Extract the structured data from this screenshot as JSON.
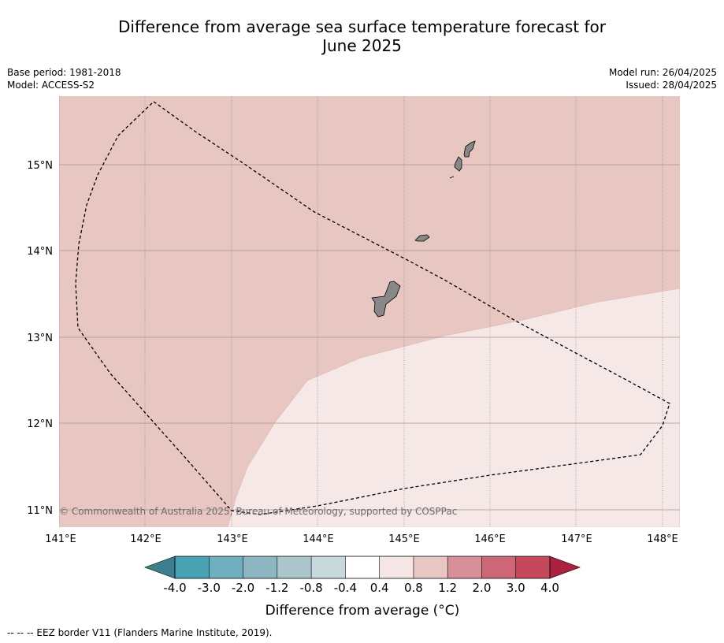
{
  "title_line1": "Difference from average sea surface temperature forecast for",
  "title_line2": "June 2025",
  "meta_left": [
    "Base period: 1981-2018",
    "Model: ACCESS-S2"
  ],
  "meta_right": [
    "Model run: 26/04/2025",
    "Issued: 28/04/2025"
  ],
  "copyright": "© Commonwealth of Australia 2025, Bureau of Meteorology, supported by COSPPac",
  "lon_ticks": [
    "141°E",
    "142°E",
    "143°E",
    "144°E",
    "145°E",
    "146°E",
    "147°E",
    "148°E"
  ],
  "lat_ticks": [
    "15°N",
    "14°N",
    "13°N",
    "12°N",
    "11°N"
  ],
  "colorbar": {
    "labels": [
      "-4.0",
      "-3.0",
      "-2.0",
      "-1.2",
      "-0.8",
      "-0.4",
      "0.4",
      "0.8",
      "1.2",
      "2.0",
      "3.0",
      "4.0"
    ],
    "colors": [
      "#3c7f8e",
      "#4aa3b5",
      "#6fb0be",
      "#8cb7c2",
      "#a9c6cb",
      "#c8d9dc",
      "#ffffff",
      "#f5e6e5",
      "#e8c6c2",
      "#d88f97",
      "#cd6676",
      "#c44a5b",
      "#ab2140"
    ],
    "title": "Difference from average (°C)"
  },
  "region_colors": {
    "anomaly_0_8_to_1_2": "#e8c6c2",
    "anomaly_0_4_to_0_8": "#f5e8e6",
    "land": "#888888"
  },
  "footer": "--  --  -- EEZ border V11 (Flanders Marine Institute, 2019)."
}
